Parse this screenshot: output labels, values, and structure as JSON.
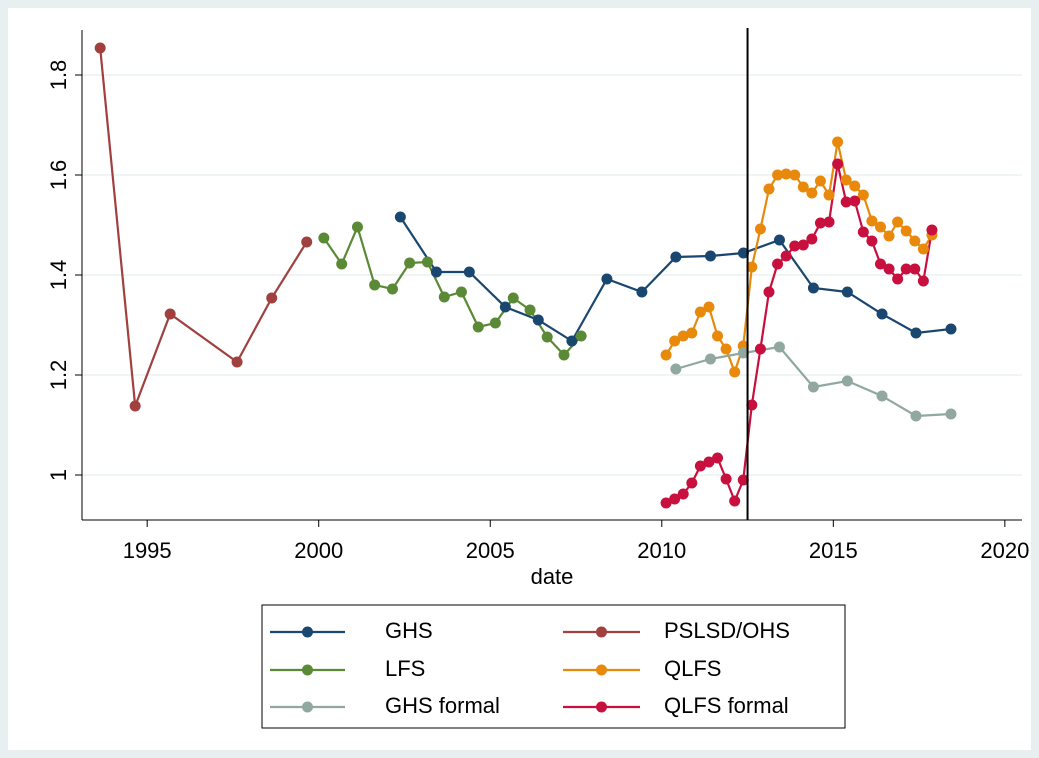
{
  "chart_data": {
    "type": "line",
    "xlabel": "date",
    "xlim": [
      1993.1,
      2020.5
    ],
    "xticks": [
      1995,
      2000,
      2005,
      2010,
      2015,
      2020
    ],
    "ylim": [
      0.91,
      1.89
    ],
    "yticks": [
      1,
      1.2,
      1.4,
      1.6,
      1.8
    ],
    "grid": true,
    "vline": 2012.5,
    "vline_color": "#000000",
    "legend": "bottom",
    "series": [
      {
        "name": "GHS",
        "color": "#1a476f",
        "x": [
          2002.38,
          2003.43,
          2004.39,
          2005.44,
          2006.4,
          2007.38,
          2008.4,
          2009.42,
          2010.41,
          2011.42,
          2012.38,
          2013.43,
          2014.42,
          2015.41,
          2016.42,
          2017.41,
          2018.43
        ],
        "values": [
          1.516,
          1.406,
          1.406,
          1.336,
          1.31,
          1.268,
          1.392,
          1.366,
          1.436,
          1.438,
          1.444,
          1.47,
          1.374,
          1.366,
          1.322,
          1.284,
          1.292
        ]
      },
      {
        "name": "PSLSD/OHS",
        "color": "#a0403f",
        "x": [
          1993.63,
          1994.65,
          1995.67,
          1997.62,
          1998.63,
          1999.65
        ],
        "values": [
          1.854,
          1.138,
          1.322,
          1.226,
          1.354,
          1.466
        ]
      },
      {
        "name": "LFS",
        "color": "#5a8a35",
        "x": [
          2000.15,
          2000.67,
          2001.13,
          2001.63,
          2002.15,
          2002.65,
          2003.17,
          2003.66,
          2004.16,
          2004.65,
          2005.15,
          2005.67,
          2006.16,
          2006.66,
          2007.15,
          2007.65
        ],
        "values": [
          1.474,
          1.422,
          1.496,
          1.38,
          1.372,
          1.424,
          1.426,
          1.356,
          1.366,
          1.296,
          1.304,
          1.354,
          1.33,
          1.276,
          1.24,
          1.278
        ]
      },
      {
        "name": "QLFS",
        "color": "#e8890c",
        "x": [
          2010.125,
          2010.375,
          2010.625,
          2010.875,
          2011.125,
          2011.375,
          2011.625,
          2011.875,
          2012.125,
          2012.375,
          2012.625,
          2012.875,
          2013.125,
          2013.375,
          2013.625,
          2013.875,
          2014.125,
          2014.375,
          2014.625,
          2014.875,
          2015.125,
          2015.375,
          2015.625,
          2015.875,
          2016.125,
          2016.375,
          2016.625,
          2016.875,
          2017.125,
          2017.375,
          2017.625,
          2017.875
        ],
        "values": [
          1.24,
          1.268,
          1.278,
          1.284,
          1.326,
          1.336,
          1.278,
          1.252,
          1.206,
          1.258,
          1.416,
          1.492,
          1.572,
          1.6,
          1.602,
          1.6,
          1.576,
          1.564,
          1.588,
          1.56,
          1.666,
          1.59,
          1.578,
          1.56,
          1.508,
          1.496,
          1.478,
          1.506,
          1.488,
          1.468,
          1.452,
          1.48
        ]
      },
      {
        "name": "GHS formal",
        "color": "#90a8a0",
        "x": [
          2010.41,
          2011.42,
          2012.38,
          2013.43,
          2014.42,
          2015.41,
          2016.42,
          2017.41,
          2018.43
        ],
        "values": [
          1.212,
          1.232,
          1.244,
          1.256,
          1.176,
          1.188,
          1.158,
          1.118,
          1.122
        ]
      },
      {
        "name": "QLFS formal",
        "color": "#c8103e",
        "x": [
          2010.125,
          2010.375,
          2010.625,
          2010.875,
          2011.125,
          2011.375,
          2011.625,
          2011.875,
          2012.125,
          2012.375,
          2012.625,
          2012.875,
          2013.125,
          2013.375,
          2013.625,
          2013.875,
          2014.125,
          2014.375,
          2014.625,
          2014.875,
          2015.125,
          2015.375,
          2015.625,
          2015.875,
          2016.125,
          2016.375,
          2016.625,
          2016.875,
          2017.125,
          2017.375,
          2017.625,
          2017.875
        ],
        "values": [
          0.944,
          0.952,
          0.962,
          0.984,
          1.018,
          1.026,
          1.034,
          0.992,
          0.948,
          0.99,
          1.14,
          1.252,
          1.366,
          1.422,
          1.438,
          1.458,
          1.46,
          1.472,
          1.504,
          1.506,
          1.622,
          1.546,
          1.548,
          1.486,
          1.468,
          1.422,
          1.412,
          1.392,
          1.412,
          1.412,
          1.388,
          1.49
        ]
      }
    ]
  }
}
